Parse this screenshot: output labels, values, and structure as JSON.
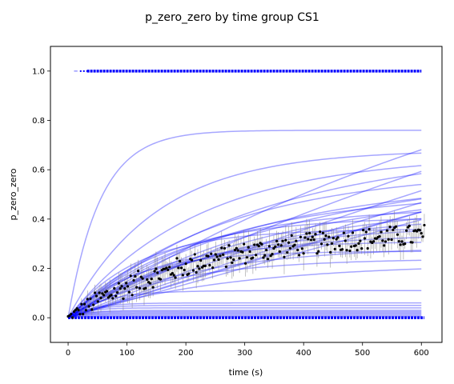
{
  "chart_data": {
    "type": "line",
    "title": "p_zero_zero by time group CS1",
    "xlabel": "time (s)",
    "ylabel": "p_zero_zero",
    "xlim": [
      -30,
      635
    ],
    "ylim": [
      -0.1,
      1.1
    ],
    "xticks": [
      0,
      100,
      200,
      300,
      400,
      500,
      600
    ],
    "yticks": [
      0.0,
      0.2,
      0.4,
      0.6,
      0.8,
      1.0
    ],
    "xtick_labels": [
      "0",
      "100",
      "200",
      "300",
      "400",
      "500",
      "600"
    ],
    "ytick_labels": [
      "0.0",
      "0.2",
      "0.4",
      "0.6",
      "0.8",
      "1.0"
    ],
    "grid": false,
    "colors": {
      "fits": "#0000ff",
      "points": "#000000",
      "errorbars": "#808080"
    },
    "fit_curves": [
      {
        "a": 0.76,
        "tau": 55
      },
      {
        "a": 0.68,
        "tau": 150
      },
      {
        "a": 0.66,
        "tau": 220
      },
      {
        "a": 0.69,
        "tau": 320
      },
      {
        "a": 0.6,
        "tau": 260
      },
      {
        "a": 0.62,
        "tau": 400
      },
      {
        "a": 0.56,
        "tau": 300
      },
      {
        "a": 0.54,
        "tau": 360
      },
      {
        "a": 0.51,
        "tau": 250
      },
      {
        "a": 0.48,
        "tau": 330
      },
      {
        "a": 0.45,
        "tau": 200
      },
      {
        "a": 0.43,
        "tau": 280
      },
      {
        "a": 0.41,
        "tau": 160
      },
      {
        "a": 0.38,
        "tau": 230
      },
      {
        "a": 0.36,
        "tau": 120
      },
      {
        "a": 0.34,
        "tau": 190
      },
      {
        "a": 0.31,
        "tau": 140
      },
      {
        "a": 0.29,
        "tau": 210
      },
      {
        "a": 0.27,
        "tau": 110
      },
      {
        "a": 0.24,
        "tau": 170
      },
      {
        "a": 0.22,
        "tau": 260
      },
      {
        "a": 1.4,
        "tau": 900
      },
      {
        "a": 1.8,
        "tau": 1500
      },
      {
        "a": 2.5,
        "tau": 2600
      },
      {
        "a": 3.2,
        "tau": 3800
      },
      {
        "a": 2.8,
        "tau": 3600
      },
      {
        "a": 4.5,
        "tau": 6000
      },
      {
        "a": 5.5,
        "tau": 8000
      },
      {
        "a": 0.11,
        "tau": 60
      },
      {
        "a": 0.06,
        "tau": 40
      },
      {
        "a": 0.05,
        "tau": 35
      },
      {
        "a": 0.04,
        "tau": 30
      },
      {
        "a": 0.03,
        "tau": 30
      },
      {
        "a": 0.025,
        "tau": 25
      },
      {
        "a": 0.02,
        "tau": 25
      },
      {
        "a": 0.015,
        "tau": 20
      },
      {
        "a": 0.01,
        "tau": 20
      },
      {
        "a": 0.005,
        "tau": 15
      }
    ],
    "constant_lines": [
      {
        "y": 1.0,
        "x_start": 10,
        "x_end": 600,
        "style": "dotted-start"
      },
      {
        "y": 1.0,
        "x_start": 32,
        "x_end": 600,
        "style": "solid"
      },
      {
        "y": 0.0,
        "x_start": 0,
        "x_end": 605,
        "style": "solid"
      }
    ],
    "mean_points": {
      "x_start": 0,
      "x_end": 605,
      "count": 240,
      "trend": {
        "a": 0.36,
        "tau": 230
      },
      "noise": 0.045,
      "err_min": 0.02,
      "err_max": 0.07
    }
  }
}
